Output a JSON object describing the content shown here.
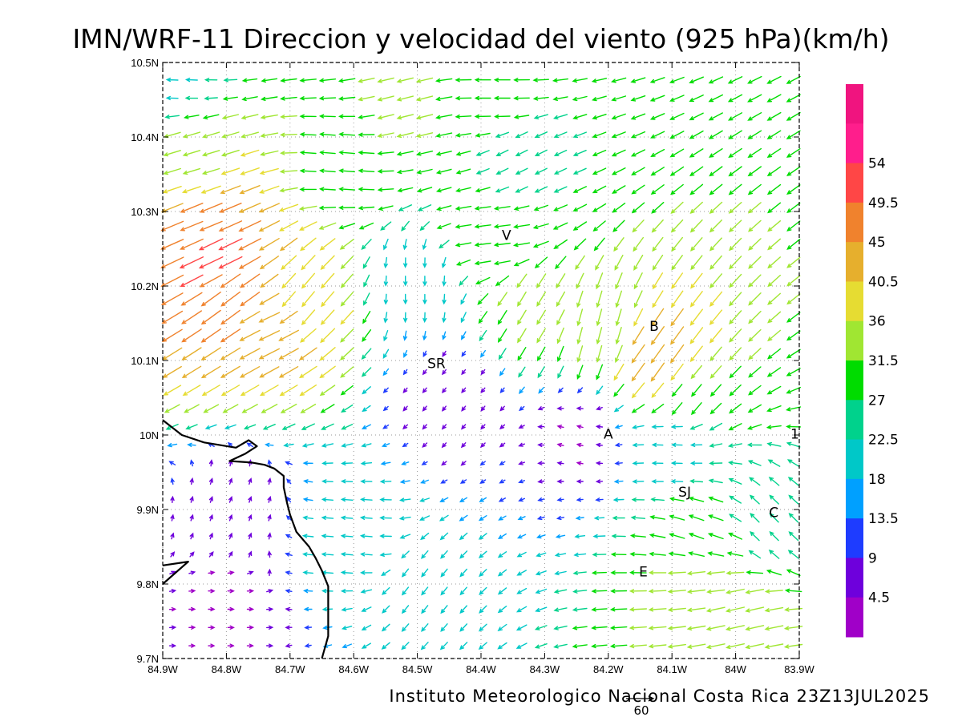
{
  "chart_data": {
    "type": "vector-field",
    "title": "IMN/WRF-11 Direccion y velocidad del viento (925 hPa)(km/h)",
    "footer": "Instituto Meteorologico Nacional Costa Rica 23Z13JUL2025",
    "reference_vector_label": "60",
    "xlim": [
      -84.9,
      -83.9
    ],
    "ylim": [
      9.7,
      10.5
    ],
    "x_ticks": [
      {
        "value": -84.9,
        "label": "84.9W"
      },
      {
        "value": -84.8,
        "label": "84.8W"
      },
      {
        "value": -84.7,
        "label": "84.7W"
      },
      {
        "value": -84.6,
        "label": "84.6W"
      },
      {
        "value": -84.5,
        "label": "84.5W"
      },
      {
        "value": -84.4,
        "label": "84.4W"
      },
      {
        "value": -84.3,
        "label": "84.3W"
      },
      {
        "value": -84.2,
        "label": "84.2W"
      },
      {
        "value": -84.1,
        "label": "84.1W"
      },
      {
        "value": -84.0,
        "label": "84W"
      },
      {
        "value": -83.9,
        "label": "83.9W"
      }
    ],
    "y_ticks": [
      {
        "value": 9.7,
        "label": "9.7N"
      },
      {
        "value": 9.8,
        "label": "9.8N"
      },
      {
        "value": 9.9,
        "label": "9.9N"
      },
      {
        "value": 10.0,
        "label": "10N"
      },
      {
        "value": 10.1,
        "label": "10.1N"
      },
      {
        "value": 10.2,
        "label": "10.2N"
      },
      {
        "value": 10.3,
        "label": "10.3N"
      },
      {
        "value": 10.4,
        "label": "10.4N"
      },
      {
        "value": 10.5,
        "label": "10.5N"
      }
    ],
    "grid": true,
    "colorbar": {
      "min": 0,
      "max": 63,
      "labels": [
        "54",
        "49.5",
        "45",
        "40.5",
        "36",
        "31.5",
        "27",
        "22.5",
        "18",
        "13.5",
        "9",
        "4.5"
      ],
      "label_values": [
        54,
        49.5,
        45,
        40.5,
        36,
        31.5,
        27,
        22.5,
        18,
        13.5,
        9,
        4.5
      ],
      "bands": [
        {
          "from": 58.5,
          "to": 63,
          "color": "#f0147f"
        },
        {
          "from": 54,
          "to": 58.5,
          "color": "#ff1e8c"
        },
        {
          "from": 49.5,
          "to": 54,
          "color": "#ff4646"
        },
        {
          "from": 45,
          "to": 49.5,
          "color": "#f0822d"
        },
        {
          "from": 40.5,
          "to": 45,
          "color": "#e6af2d"
        },
        {
          "from": 36,
          "to": 40.5,
          "color": "#e6dc32"
        },
        {
          "from": 31.5,
          "to": 36,
          "color": "#a0e632"
        },
        {
          "from": 27,
          "to": 31.5,
          "color": "#00dc00"
        },
        {
          "from": 22.5,
          "to": 27,
          "color": "#00d28c"
        },
        {
          "from": 18,
          "to": 22.5,
          "color": "#00c8c8"
        },
        {
          "from": 13.5,
          "to": 18,
          "color": "#00a0ff"
        },
        {
          "from": 9,
          "to": 13.5,
          "color": "#1e3cff"
        },
        {
          "from": 4.5,
          "to": 9,
          "color": "#6e00dc"
        },
        {
          "from": 0,
          "to": 4.5,
          "color": "#a000c8"
        }
      ]
    },
    "places": [
      {
        "label": "V",
        "lon": -84.36,
        "lat": 10.262
      },
      {
        "label": "B",
        "lon": -84.128,
        "lat": 10.14
      },
      {
        "label": "SR",
        "lon": -84.47,
        "lat": 10.09
      },
      {
        "label": "A",
        "lon": -84.2,
        "lat": 9.995
      },
      {
        "label": "SJ",
        "lon": -84.08,
        "lat": 9.917
      },
      {
        "label": "C",
        "lon": -83.94,
        "lat": 9.89
      },
      {
        "label": "E",
        "lon": -84.145,
        "lat": 9.81
      },
      {
        "label": "1",
        "lon": -83.907,
        "lat": 9.995
      }
    ],
    "coastline": [
      [
        -84.9,
        10.02
      ],
      [
        -84.87,
        10.0
      ],
      [
        -84.835,
        9.99
      ],
      [
        -84.785,
        9.983
      ],
      [
        -84.765,
        9.993
      ],
      [
        -84.752,
        9.985
      ],
      [
        -84.77,
        9.975
      ],
      [
        -84.795,
        9.965
      ],
      [
        -84.76,
        9.963
      ],
      [
        -84.74,
        9.96
      ],
      [
        -84.725,
        9.955
      ],
      [
        -84.71,
        9.945
      ],
      [
        -84.71,
        9.93
      ],
      [
        -84.705,
        9.91
      ],
      [
        -84.7,
        9.893
      ],
      [
        -84.69,
        9.87
      ],
      [
        -84.67,
        9.85
      ],
      [
        -84.66,
        9.835
      ],
      [
        -84.65,
        9.818
      ],
      [
        -84.64,
        9.797
      ],
      [
        -84.64,
        9.776
      ],
      [
        -84.64,
        9.75
      ],
      [
        -84.64,
        9.73
      ],
      [
        -84.65,
        9.7
      ]
    ],
    "coastline2": [
      [
        -84.9,
        9.825
      ],
      [
        -84.86,
        9.83
      ],
      [
        -84.88,
        9.815
      ],
      [
        -84.9,
        9.8
      ]
    ],
    "vector_samples": [
      {
        "lon": -84.88,
        "lat": 10.49,
        "u": -22,
        "v": 1,
        "speed": 22
      },
      {
        "lon": -84.85,
        "lat": 10.36,
        "u": -33,
        "v": -10,
        "speed": 34
      },
      {
        "lon": -84.84,
        "lat": 10.29,
        "u": -44,
        "v": -18,
        "speed": 47
      },
      {
        "lon": -84.82,
        "lat": 10.24,
        "u": -50,
        "v": -24,
        "speed": 51
      },
      {
        "lon": -84.79,
        "lat": 10.18,
        "u": -40,
        "v": -30,
        "speed": 46
      },
      {
        "lon": -84.73,
        "lat": 10.15,
        "u": -42,
        "v": -20,
        "speed": 44
      },
      {
        "lon": -84.68,
        "lat": 10.18,
        "u": -25,
        "v": -30,
        "speed": 38
      },
      {
        "lon": -84.62,
        "lat": 10.37,
        "u": -35,
        "v": 3,
        "speed": 30
      },
      {
        "lon": -84.52,
        "lat": 10.44,
        "u": -40,
        "v": -10,
        "speed": 32
      },
      {
        "lon": -84.38,
        "lat": 10.46,
        "u": -45,
        "v": 0,
        "speed": 30
      },
      {
        "lon": -84.38,
        "lat": 10.27,
        "u": -40,
        "v": -5,
        "speed": 31
      },
      {
        "lon": -84.34,
        "lat": 10.37,
        "u": -30,
        "v": -15,
        "speed": 25
      },
      {
        "lon": -84.32,
        "lat": 10.17,
        "u": -15,
        "v": -25,
        "speed": 32
      },
      {
        "lon": -84.22,
        "lat": 10.14,
        "u": -8,
        "v": -30,
        "speed": 33
      },
      {
        "lon": -84.12,
        "lat": 10.1,
        "u": -20,
        "v": -28,
        "speed": 44
      },
      {
        "lon": -84.08,
        "lat": 10.05,
        "u": -18,
        "v": -22,
        "speed": 30
      },
      {
        "lon": -84.5,
        "lat": 10.2,
        "u": 0,
        "v": -22,
        "speed": 18
      },
      {
        "lon": -84.45,
        "lat": 10.05,
        "u": -4,
        "v": -5,
        "speed": 5
      },
      {
        "lon": -84.25,
        "lat": 10.0,
        "u": -4,
        "v": 1,
        "speed": 4
      },
      {
        "lon": -84.1,
        "lat": 9.99,
        "u": -30,
        "v": 1,
        "speed": 20
      },
      {
        "lon": -84.05,
        "lat": 9.86,
        "u": -28,
        "v": 10,
        "speed": 30
      },
      {
        "lon": -84.05,
        "lat": 9.81,
        "u": -35,
        "v": -4,
        "speed": 34
      },
      {
        "lon": -84.0,
        "lat": 9.76,
        "u": -35,
        "v": -8,
        "speed": 36
      },
      {
        "lon": -83.95,
        "lat": 9.88,
        "u": -18,
        "v": 18,
        "speed": 24
      },
      {
        "lon": -84.6,
        "lat": 9.86,
        "u": -35,
        "v": 3,
        "speed": 22
      },
      {
        "lon": -84.5,
        "lat": 9.8,
        "u": -12,
        "v": -15,
        "speed": 19
      },
      {
        "lon": -84.78,
        "lat": 9.9,
        "u": 3,
        "v": 8,
        "speed": 7
      },
      {
        "lon": -84.8,
        "lat": 9.77,
        "u": 4,
        "v": 0,
        "speed": 4
      }
    ]
  }
}
